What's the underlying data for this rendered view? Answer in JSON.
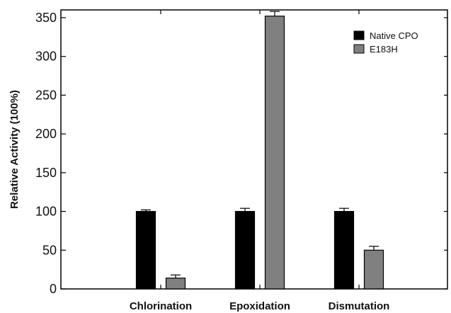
{
  "chart_data": {
    "type": "bar",
    "categories": [
      "Chlorination",
      "Epoxidation",
      "Dismutation"
    ],
    "series": [
      {
        "name": "Native CPO",
        "values": [
          100,
          100,
          100
        ],
        "errors": [
          2,
          4,
          4
        ],
        "color": "#000000"
      },
      {
        "name": "E183H",
        "values": [
          14,
          352,
          50
        ],
        "errors": [
          4,
          6,
          5
        ],
        "color": "#808080"
      }
    ],
    "ylabel": "Relative Activity (100%)",
    "xlabel": "",
    "ylim": [
      0,
      360
    ],
    "yticks": [
      0,
      50,
      100,
      150,
      200,
      250,
      300,
      350
    ],
    "legend": "top-right",
    "grid": false
  }
}
